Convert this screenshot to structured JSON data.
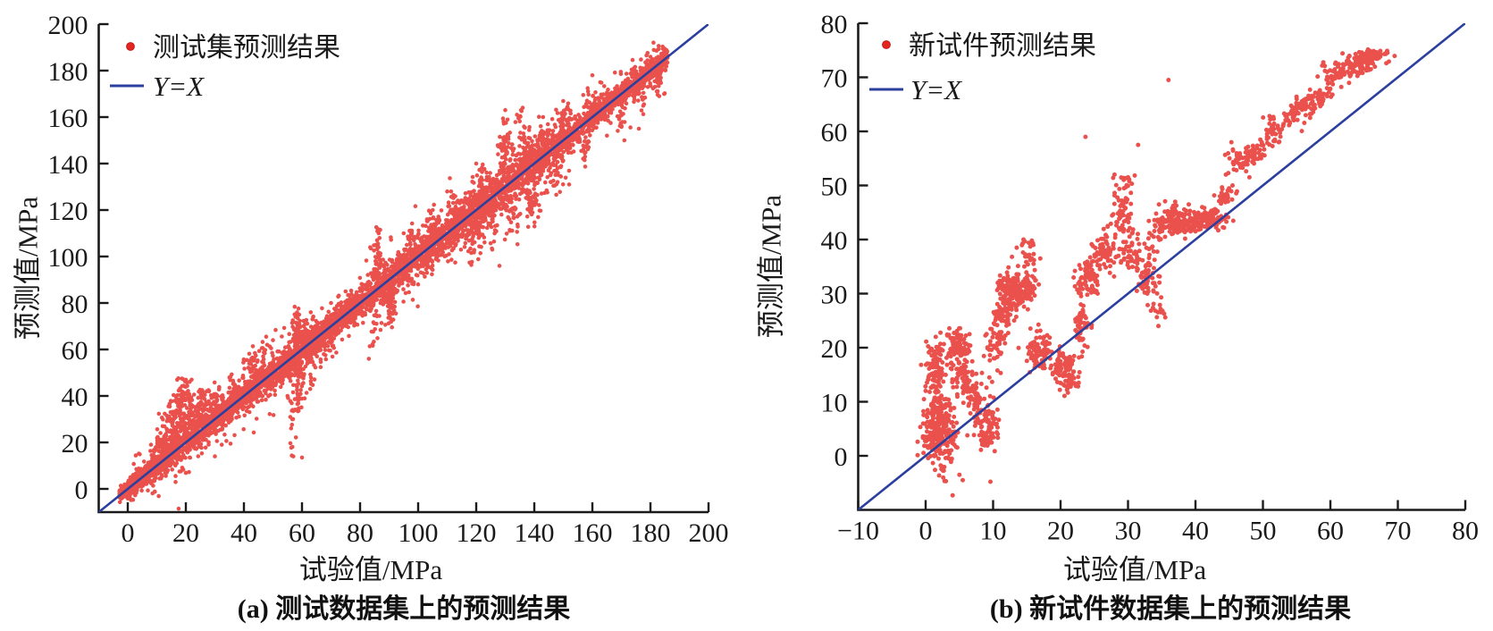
{
  "figure": {
    "type": "dual-scatter-figure",
    "marker_color": "#e52521",
    "line_color": "#2b3f9e",
    "axis_color": "#1a1a1a"
  },
  "chart_data": [
    {
      "type": "scatter",
      "panel": "a",
      "caption_prefix": "(a)",
      "caption_text": "测试数据集上的预测结果",
      "xlabel": "试验值/MPa",
      "ylabel": "预测值/MPa",
      "xlim": [
        -10,
        200
      ],
      "ylim": [
        -10,
        200
      ],
      "xticks": [
        0,
        20,
        40,
        60,
        80,
        100,
        120,
        140,
        160,
        180,
        200
      ],
      "yticks": [
        0,
        20,
        40,
        60,
        80,
        100,
        120,
        140,
        160,
        180,
        200
      ],
      "legend": [
        {
          "label": "测试集预测结果",
          "marker": "red-dot"
        },
        {
          "label": "Y=X",
          "marker": "blue-line"
        }
      ],
      "identity_line": {
        "from": [
          -10,
          -10
        ],
        "to": [
          200,
          200
        ]
      },
      "seed": 1337,
      "marker_px": 4.6,
      "series": {
        "bands": [
          [
            -3,
            6,
            420,
            1.3
          ],
          [
            0,
            18,
            380,
            2.2
          ],
          [
            8,
            40,
            500,
            2.8
          ],
          [
            20,
            62,
            480,
            3.2
          ],
          [
            40,
            88,
            650,
            3.2
          ],
          [
            62,
            112,
            520,
            3.8
          ],
          [
            88,
            142,
            780,
            4.2
          ],
          [
            112,
            152,
            420,
            4.8
          ],
          [
            140,
            186,
            520,
            3.2
          ],
          [
            158,
            186,
            280,
            2.0
          ],
          [
            2,
            40,
            170,
            6.5
          ],
          [
            40,
            90,
            170,
            7.5
          ],
          [
            90,
            150,
            200,
            8.5
          ],
          [
            150,
            185,
            90,
            6
          ]
        ],
        "clusters": [
          [
            16,
            29,
            2,
            4.5,
            70
          ],
          [
            19,
            40,
            1.5,
            3.5,
            45
          ],
          [
            12,
            21,
            1.5,
            2.5,
            45
          ],
          [
            23,
            33,
            1.3,
            3,
            35
          ],
          [
            27,
            39,
            1.3,
            2.5,
            25
          ],
          [
            43,
            54,
            1.2,
            3,
            25
          ],
          [
            58,
            52,
            1.5,
            8,
            60
          ],
          [
            59,
            66,
            1.2,
            4,
            35
          ],
          [
            63,
            60,
            1.2,
            6,
            35
          ],
          [
            66,
            64,
            1,
            4,
            25
          ],
          [
            86,
            96,
            1.2,
            6,
            40
          ],
          [
            90,
            80,
            1.2,
            4,
            35
          ],
          [
            98,
            104,
            1.2,
            5,
            30
          ],
          [
            105,
            112,
            1.2,
            5,
            30
          ],
          [
            112,
            118,
            1.2,
            5,
            25
          ],
          [
            120,
            112,
            1.5,
            6,
            40
          ],
          [
            122,
            132,
            1.2,
            4,
            30
          ],
          [
            130,
            145,
            1.5,
            6,
            45
          ],
          [
            133,
            117,
            1.5,
            5,
            30
          ],
          [
            137,
            148,
            1.2,
            5,
            35
          ],
          [
            140,
            124,
            1.2,
            5,
            25
          ],
          [
            143,
            150,
            1.2,
            4,
            25
          ],
          [
            148,
            134,
            1.2,
            4,
            20
          ],
          [
            152,
            158,
            1.2,
            4,
            20
          ],
          [
            157,
            145,
            1,
            3.5,
            18
          ],
          [
            160,
            162,
            1.2,
            5,
            20
          ],
          [
            170,
            158,
            1,
            3,
            15
          ],
          [
            177,
            168,
            1,
            3,
            15
          ],
          [
            183,
            176,
            0.8,
            3,
            18
          ]
        ],
        "streaks": [
          [
            20,
            24,
            47,
            30,
            0.8
          ],
          [
            16,
            20,
            38,
            25,
            0.8
          ],
          [
            25,
            28,
            44,
            20,
            0.7
          ],
          [
            31,
            34,
            46,
            15,
            0.7
          ],
          [
            36,
            40,
            50,
            12,
            0.7
          ],
          [
            47,
            50,
            62,
            14,
            0.7
          ],
          [
            57,
            14,
            38,
            16,
            0.7
          ],
          [
            58,
            30,
            76,
            30,
            0.9
          ],
          [
            60,
            36,
            74,
            26,
            0.9
          ],
          [
            63,
            42,
            74,
            22,
            0.8
          ],
          [
            70,
            58,
            72,
            12,
            0.7
          ],
          [
            85,
            60,
            80,
            16,
            0.8
          ],
          [
            86,
            92,
            112,
            20,
            0.8
          ],
          [
            91,
            70,
            88,
            16,
            0.8
          ],
          [
            97,
            86,
            112,
            16,
            0.8
          ],
          [
            104,
            93,
            118,
            16,
            0.8
          ],
          [
            110,
            98,
            126,
            14,
            0.8
          ],
          [
            118,
            96,
            128,
            18,
            0.8
          ],
          [
            126,
            103,
            123,
            14,
            0.8
          ],
          [
            130,
            133,
            160,
            18,
            0.9
          ],
          [
            135,
            140,
            163,
            15,
            0.8
          ],
          [
            138,
            112,
            130,
            12,
            0.8
          ],
          [
            146,
            126,
            141,
            10,
            0.7
          ],
          [
            150,
            152,
            168,
            9,
            0.7
          ],
          [
            158,
            148,
            176,
            10,
            0.7
          ],
          [
            182,
            168,
            184,
            10,
            0.7
          ]
        ],
        "points": [
          [
            57,
            14
          ],
          [
            60,
            13.5
          ],
          [
            17.5,
            -8.5
          ],
          [
            30,
            14
          ],
          [
            83,
            56
          ],
          [
            128,
            96
          ],
          [
            152,
            131
          ],
          [
            40,
            55
          ],
          [
            48,
            62
          ],
          [
            22,
            47
          ],
          [
            12,
            27
          ],
          [
            8,
            19
          ],
          [
            171,
            150
          ],
          [
            176,
            155
          ],
          [
            183,
            169
          ],
          [
            63,
            76
          ],
          [
            59,
            75
          ],
          [
            130,
            163
          ],
          [
            136,
            164
          ],
          [
            86,
            112
          ],
          [
            120,
            140
          ],
          [
            110,
            128
          ],
          [
            95,
            110
          ],
          [
            70,
            80
          ],
          [
            35,
            48
          ],
          [
            28,
            42
          ],
          [
            50,
            64
          ],
          [
            55,
            40
          ],
          [
            75,
            85
          ],
          [
            100,
            88
          ],
          [
            105,
            120
          ],
          [
            143,
            160
          ],
          [
            160,
            178
          ],
          [
            165,
            152
          ]
        ]
      }
    },
    {
      "type": "scatter",
      "panel": "b",
      "caption_prefix": "(b)",
      "caption_text": "新试件数据集上的预测结果",
      "xlabel": "试验值/MPa",
      "ylabel": "预测值/MPa",
      "xlim": [
        -10,
        80
      ],
      "ylim": [
        -10,
        80
      ],
      "xticks": [
        -10,
        0,
        10,
        20,
        30,
        40,
        50,
        60,
        70,
        80
      ],
      "yticks": [
        0,
        10,
        20,
        30,
        40,
        50,
        60,
        70,
        80
      ],
      "legend": [
        {
          "label": "新试件预测结果",
          "marker": "red-dot"
        },
        {
          "label": "Y=X",
          "marker": "blue-line"
        }
      ],
      "identity_line": {
        "from": [
          -10,
          -10
        ],
        "to": [
          80,
          80
        ]
      },
      "seed": 777,
      "marker_px": 5.0,
      "series": {
        "bands": [],
        "clusters": [
          [
            2,
            3.5,
            1.2,
            2.2,
            180
          ],
          [
            2,
            8.5,
            1,
            1.5,
            85
          ],
          [
            1.5,
            14,
            0.8,
            1.5,
            50
          ],
          [
            1.5,
            18.5,
            0.8,
            1.5,
            45
          ],
          [
            4,
            21,
            0.8,
            1.3,
            45
          ],
          [
            5,
            19.5,
            0.8,
            1.2,
            55
          ],
          [
            5.5,
            15,
            0.7,
            1.3,
            35
          ],
          [
            6.5,
            12.5,
            0.7,
            1.3,
            35
          ],
          [
            7.5,
            10,
            0.7,
            1.3,
            35
          ],
          [
            8.7,
            7,
            0.7,
            1.3,
            35
          ],
          [
            9.6,
            4.6,
            0.7,
            1.2,
            30
          ],
          [
            9,
            2.8,
            0.6,
            1,
            18
          ],
          [
            10.5,
            21,
            0.8,
            2,
            50
          ],
          [
            11.5,
            26.5,
            0.7,
            1.3,
            45
          ],
          [
            13,
            30.5,
            1.2,
            1.7,
            190
          ],
          [
            15.3,
            31,
            0.6,
            1.5,
            40
          ],
          [
            15,
            37.5,
            0.7,
            1.5,
            22
          ],
          [
            17,
            19,
            1,
            1.8,
            90
          ],
          [
            20.5,
            16.5,
            1.2,
            1.5,
            80
          ],
          [
            21,
            13.5,
            0.8,
            1,
            28
          ],
          [
            23,
            24,
            0.6,
            2,
            40
          ],
          [
            24,
            33,
            0.9,
            1.7,
            70
          ],
          [
            26.5,
            38,
            1,
            1.7,
            70
          ],
          [
            29,
            44.5,
            0.8,
            2,
            45
          ],
          [
            31,
            37,
            1.2,
            2,
            60
          ],
          [
            33,
            32.5,
            0.8,
            1.5,
            45
          ],
          [
            34.5,
            26.5,
            0.6,
            1,
            14
          ],
          [
            35,
            42.5,
            0.8,
            1.5,
            50
          ],
          [
            36.5,
            44.5,
            0.7,
            1.2,
            40
          ],
          [
            38,
            43,
            1.2,
            1.2,
            70
          ],
          [
            40.5,
            43.5,
            1,
            1,
            60
          ],
          [
            42.5,
            43.8,
            1.2,
            0.9,
            70
          ],
          [
            44.5,
            47.8,
            0.8,
            0.9,
            30
          ],
          [
            46.8,
            54.5,
            0.9,
            1.3,
            45
          ],
          [
            49,
            56.2,
            0.7,
            1,
            30
          ],
          [
            51.5,
            60,
            0.9,
            1.2,
            40
          ],
          [
            54,
            62.5,
            0.8,
            1,
            35
          ],
          [
            56.5,
            65,
            0.9,
            1,
            40
          ],
          [
            58.5,
            66.5,
            0.8,
            0.9,
            35
          ],
          [
            61,
            70.5,
            1,
            1,
            45
          ],
          [
            63,
            72,
            0.9,
            0.9,
            45
          ],
          [
            65,
            73.3,
            1,
            0.8,
            50
          ],
          [
            67,
            74,
            0.9,
            0.7,
            40
          ]
        ],
        "streaks": [
          [
            2.5,
            -5,
            1,
            12,
            0.5
          ],
          [
            4.2,
            4,
            20,
            20,
            0.5
          ],
          [
            9.3,
            2,
            16,
            14,
            0.5
          ],
          [
            29.5,
            41,
            52.5,
            30,
            0.8
          ],
          [
            23,
            21,
            27,
            15,
            0.5
          ]
        ],
        "points": [
          [
            3,
            -4.7
          ],
          [
            4,
            -7.3
          ],
          [
            2.5,
            -2
          ],
          [
            5,
            -3.5
          ],
          [
            9.3,
            3.3
          ],
          [
            9.6,
            -4.8
          ],
          [
            10,
            8
          ],
          [
            13.5,
            38.5
          ],
          [
            14.5,
            40
          ],
          [
            12.8,
            36.8
          ],
          [
            19.9,
            12.2
          ],
          [
            21.5,
            12.8
          ],
          [
            23.7,
            59
          ],
          [
            23,
            28
          ],
          [
            28,
            52
          ],
          [
            30,
            51.5
          ],
          [
            36,
            69.5
          ],
          [
            37,
            47
          ],
          [
            39,
            46.5
          ],
          [
            45.5,
            50
          ],
          [
            48,
            51.5
          ],
          [
            59.5,
            68
          ],
          [
            60.3,
            66.8
          ],
          [
            64,
            72.8
          ],
          [
            66,
            71.5
          ],
          [
            68,
            74.3
          ],
          [
            57,
            62.5
          ],
          [
            31.5,
            57.5
          ],
          [
            44.5,
            52
          ],
          [
            0,
            12
          ],
          [
            1.5,
            22
          ],
          [
            6.5,
            22.5
          ],
          [
            16,
            35.5
          ],
          [
            17,
            36.5
          ],
          [
            25.5,
            30
          ],
          [
            27,
            42.5
          ],
          [
            33.5,
            38.5
          ],
          [
            35.5,
            40.5
          ],
          [
            41,
            46
          ],
          [
            43,
            45.5
          ],
          [
            50,
            57.5
          ],
          [
            53,
            61
          ],
          [
            55,
            63.5
          ],
          [
            62,
            71
          ],
          [
            36.5,
            41
          ],
          [
            40,
            41.5
          ],
          [
            34.5,
            24
          ],
          [
            5.5,
            -4.5
          ]
        ]
      }
    }
  ]
}
